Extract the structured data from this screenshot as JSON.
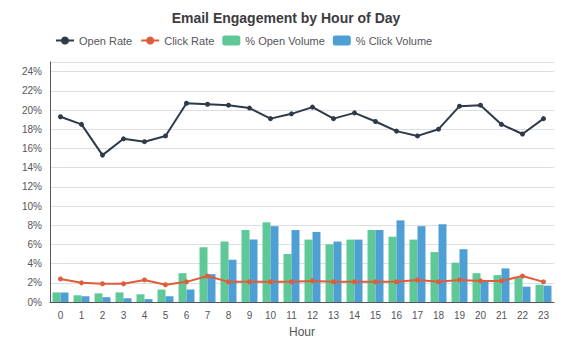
{
  "chart_data": {
    "type": "bar",
    "title": "Email Engagement by Hour of Day",
    "xlabel": "Hour",
    "categories": [
      "0",
      "1",
      "2",
      "3",
      "4",
      "5",
      "6",
      "7",
      "8",
      "9",
      "10",
      "11",
      "12",
      "13",
      "14",
      "15",
      "16",
      "17",
      "18",
      "19",
      "20",
      "21",
      "22",
      "23"
    ],
    "series": [
      {
        "name": "Open Rate",
        "type": "line",
        "marker": "circle",
        "color": "#2d3a4a",
        "values": [
          0.193,
          0.185,
          0.153,
          0.17,
          0.167,
          0.173,
          0.207,
          0.206,
          0.205,
          0.202,
          0.191,
          0.196,
          0.203,
          0.191,
          0.197,
          0.188,
          0.178,
          0.173,
          0.18,
          0.204,
          0.205,
          0.185,
          0.175,
          0.191
        ]
      },
      {
        "name": "Click Rate",
        "type": "line",
        "marker": "circle",
        "color": "#e05c3a",
        "values": [
          0.024,
          0.02,
          0.019,
          0.019,
          0.023,
          0.018,
          0.021,
          0.027,
          0.021,
          0.021,
          0.021,
          0.021,
          0.022,
          0.021,
          0.021,
          0.021,
          0.021,
          0.023,
          0.021,
          0.023,
          0.022,
          0.022,
          0.027,
          0.021
        ]
      },
      {
        "name": "% Open Volume",
        "type": "bar",
        "color": "#5ec896",
        "values": [
          0.01,
          0.007,
          0.009,
          0.01,
          0.008,
          0.013,
          0.03,
          0.057,
          0.063,
          0.075,
          0.083,
          0.05,
          0.065,
          0.06,
          0.065,
          0.075,
          0.068,
          0.065,
          0.052,
          0.041,
          0.03,
          0.028,
          0.025,
          0.018
        ]
      },
      {
        "name": "% Click Volume",
        "type": "bar",
        "color": "#4e9fd4",
        "values": [
          0.01,
          0.006,
          0.005,
          0.004,
          0.003,
          0.006,
          0.013,
          0.029,
          0.044,
          0.065,
          0.079,
          0.075,
          0.073,
          0.063,
          0.065,
          0.075,
          0.085,
          0.079,
          0.081,
          0.055,
          0.022,
          0.035,
          0.016,
          0.017
        ]
      }
    ],
    "ylim": [
      0,
      0.25
    ],
    "yticks": [
      {
        "value": 0,
        "label": "0%"
      },
      {
        "value": 0.02,
        "label": "2%"
      },
      {
        "value": 0.04,
        "label": "4%"
      },
      {
        "value": 0.06,
        "label": "6%"
      },
      {
        "value": 0.08,
        "label": "8%"
      },
      {
        "value": 0.1,
        "label": "10%"
      },
      {
        "value": 0.12,
        "label": "12%"
      },
      {
        "value": 0.14,
        "label": "14%"
      },
      {
        "value": 0.16,
        "label": "16%"
      },
      {
        "value": 0.18,
        "label": "18%"
      },
      {
        "value": 0.2,
        "label": "20%"
      },
      {
        "value": 0.22,
        "label": "22%"
      },
      {
        "value": 0.24,
        "label": "24%"
      }
    ],
    "grid": true,
    "legend": "upper left"
  }
}
